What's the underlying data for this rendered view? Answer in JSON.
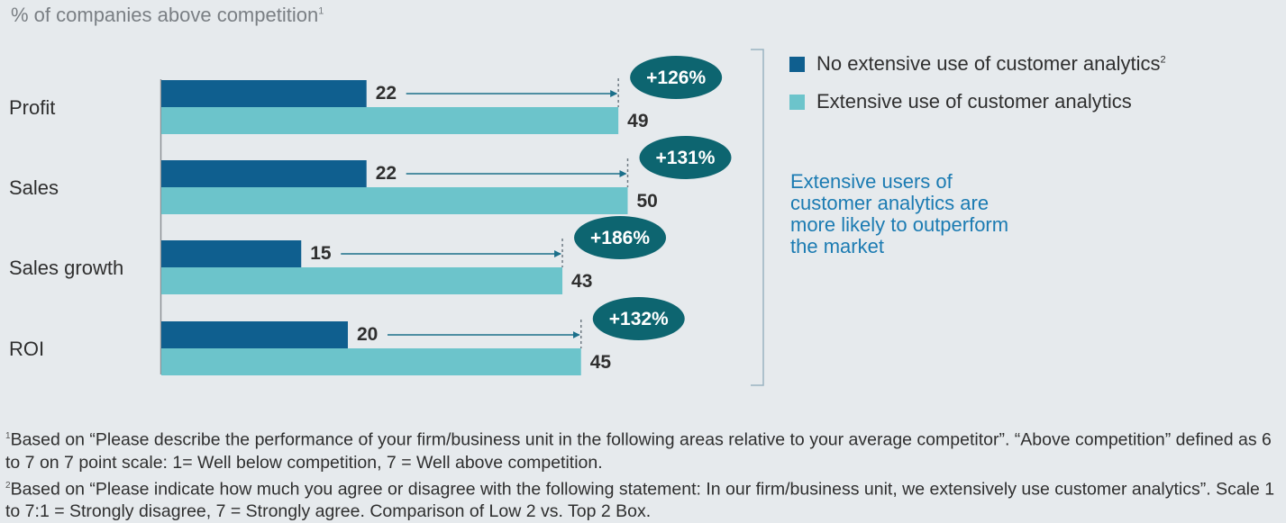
{
  "subtitle": "% of companies above competition",
  "subtitle_note": "1",
  "chart_data": {
    "type": "bar",
    "orientation": "horizontal",
    "title": "% of companies above competition",
    "categories": [
      "Profit",
      "Sales",
      "Sales growth",
      "ROI"
    ],
    "series": [
      {
        "name": "No extensive use of customer analytics",
        "color": "#0f5f8f",
        "values": [
          22,
          22,
          15,
          20
        ]
      },
      {
        "name": "Extensive use of customer analytics",
        "color": "#6cc4cb",
        "values": [
          49,
          50,
          43,
          45
        ]
      }
    ],
    "uplifts": [
      "+126%",
      "+131%",
      "+186%",
      "+132%"
    ],
    "uplift_color": "#0d6570",
    "xlim": [
      0,
      100
    ]
  },
  "legend": {
    "items": [
      {
        "label": "No extensive use of customer analytics",
        "note": "2",
        "color": "#0f5f8f"
      },
      {
        "label": "Extensive use of customer analytics",
        "note": "",
        "color": "#6cc4cb"
      }
    ]
  },
  "callout": "Extensive users of customer analytics are more likely to outperform the market",
  "footnotes": [
    {
      "mark": "1",
      "text": "Based on “Please describe the performance of your firm/business unit in the following areas relative to your average competitor”. “Above competition” defined as 6 to 7 on 7 point scale: 1= Well below competition, 7 = Well above competition."
    },
    {
      "mark": "2",
      "text": "Based on “Please indicate how much you agree or disagree with the following statement: In our firm/business unit, we extensively use customer analytics”. Scale 1 to 7:1 = Strongly disagree, 7 = Strongly agree. Comparison of Low 2 vs. Top 2 Box."
    }
  ]
}
